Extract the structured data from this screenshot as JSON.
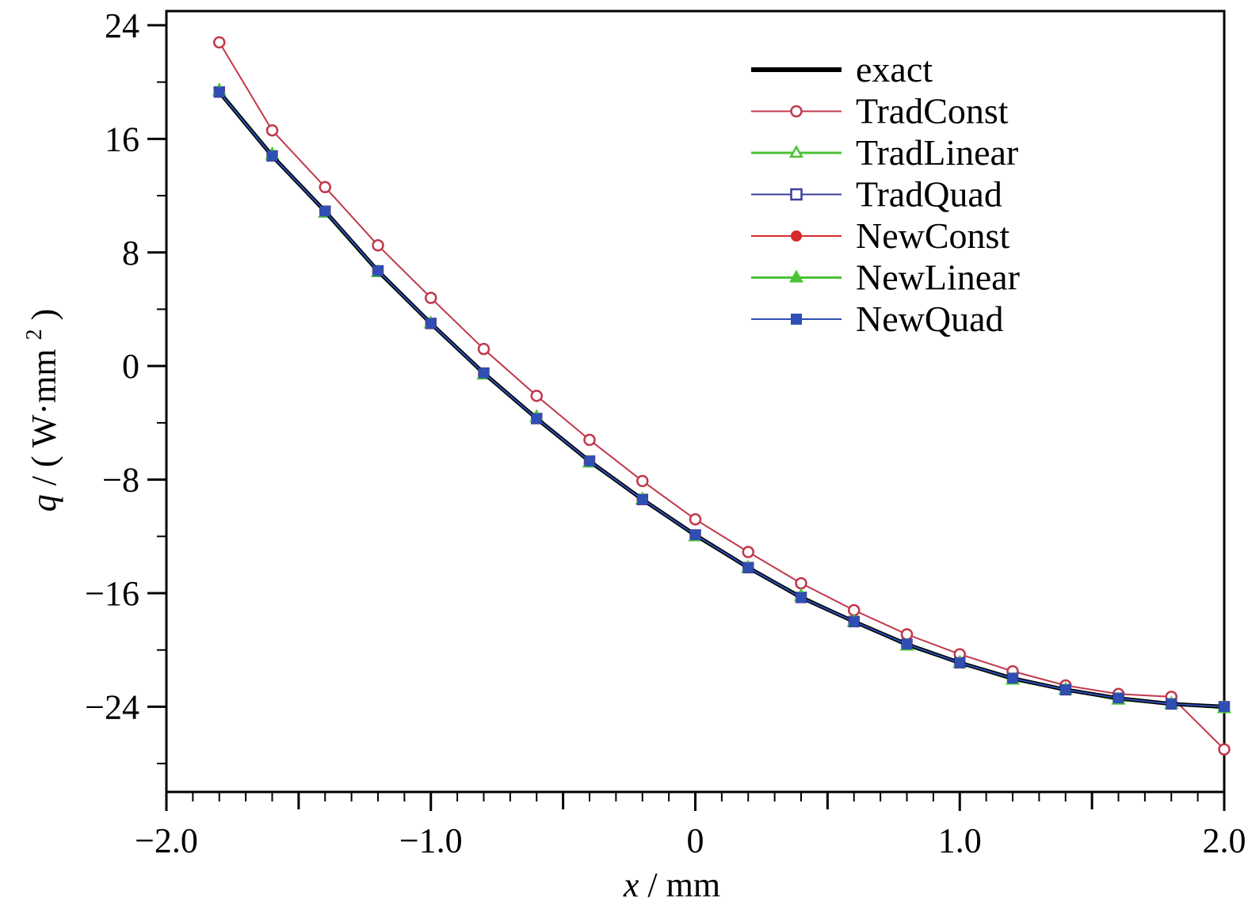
{
  "chart_data": {
    "type": "line",
    "title": "",
    "xlabel_var": "x",
    "xlabel_unit": "mm",
    "ylabel_var": "q",
    "ylabel_unit": "W·mm",
    "ylabel_exp": "2",
    "xlim": [
      -2.0,
      2.0
    ],
    "ylim": [
      -30,
      25
    ],
    "x_ticks": [
      -2.0,
      -1.0,
      0,
      1.0,
      2.0
    ],
    "x_tick_labels": [
      "−2.0",
      "−1.0",
      "0",
      "1.0",
      "2.0"
    ],
    "y_ticks": [
      24,
      16,
      8,
      0,
      -8,
      -16,
      -24
    ],
    "y_tick_labels": [
      "24",
      "16",
      "8",
      "0",
      "−8",
      "−16",
      "−24"
    ],
    "grid": false,
    "legend_position": "top-right",
    "x": [
      -1.8,
      -1.6,
      -1.4,
      -1.2,
      -1.0,
      -0.8,
      -0.6,
      -0.4,
      -0.2,
      0,
      0.2,
      0.4,
      0.6,
      0.8,
      1.0,
      1.2,
      1.4,
      1.6,
      1.8,
      2.0
    ],
    "series": [
      {
        "name": "exact",
        "color": "#000000",
        "marker": "none",
        "width": 5,
        "values": [
          19.3,
          14.8,
          10.9,
          6.7,
          3.0,
          -0.5,
          -3.7,
          -6.7,
          -9.4,
          -11.9,
          -14.2,
          -16.3,
          -18.0,
          -19.6,
          -20.9,
          -22.0,
          -22.8,
          -23.4,
          -23.8,
          -24.0
        ]
      },
      {
        "name": "TradConst",
        "color": "#c0394b",
        "marker": "circle-open",
        "width": 2,
        "values": [
          22.8,
          16.6,
          12.6,
          8.5,
          4.8,
          1.2,
          -2.1,
          -5.2,
          -8.1,
          -10.8,
          -13.1,
          -15.3,
          -17.2,
          -18.9,
          -20.3,
          -21.5,
          -22.5,
          -23.1,
          -23.3,
          -27.0
        ]
      },
      {
        "name": "TradLinear",
        "color": "#4cc236",
        "marker": "triangle-open",
        "width": 3,
        "values": [
          19.4,
          14.9,
          10.8,
          6.6,
          3.0,
          -0.6,
          -3.6,
          -6.8,
          -9.4,
          -12.0,
          -14.2,
          -16.2,
          -18.0,
          -19.7,
          -20.9,
          -22.1,
          -22.8,
          -23.5,
          -23.8,
          -24.1
        ]
      },
      {
        "name": "TradQuad",
        "color": "#3a3f9a",
        "marker": "square-open",
        "width": 2,
        "values": [
          19.3,
          14.8,
          10.9,
          6.7,
          3.0,
          -0.5,
          -3.7,
          -6.7,
          -9.4,
          -11.9,
          -14.2,
          -16.3,
          -18.0,
          -19.6,
          -20.9,
          -22.0,
          -22.8,
          -23.4,
          -23.8,
          -24.0
        ]
      },
      {
        "name": "NewConst",
        "color": "#d62b2b",
        "marker": "circle-filled",
        "width": 2,
        "values": [
          19.3,
          14.8,
          10.9,
          6.7,
          3.0,
          -0.5,
          -3.7,
          -6.7,
          -9.4,
          -11.9,
          -14.2,
          -16.3,
          -18.0,
          -19.6,
          -20.9,
          -22.0,
          -22.8,
          -23.4,
          -23.8,
          -24.0
        ]
      },
      {
        "name": "NewLinear",
        "color": "#4cc236",
        "marker": "triangle-filled",
        "width": 3,
        "values": [
          19.4,
          14.9,
          10.8,
          6.6,
          3.0,
          -0.6,
          -3.6,
          -6.8,
          -9.4,
          -12.0,
          -14.2,
          -16.2,
          -18.0,
          -19.7,
          -20.9,
          -22.1,
          -22.8,
          -23.5,
          -23.8,
          -24.1
        ]
      },
      {
        "name": "NewQuad",
        "color": "#2f4fb5",
        "marker": "square-filled",
        "width": 2,
        "values": [
          19.3,
          14.8,
          10.9,
          6.7,
          3.0,
          -0.5,
          -3.7,
          -6.7,
          -9.4,
          -11.9,
          -14.2,
          -16.3,
          -18.0,
          -19.6,
          -20.9,
          -22.0,
          -22.8,
          -23.4,
          -23.8,
          -24.0
        ]
      }
    ]
  }
}
